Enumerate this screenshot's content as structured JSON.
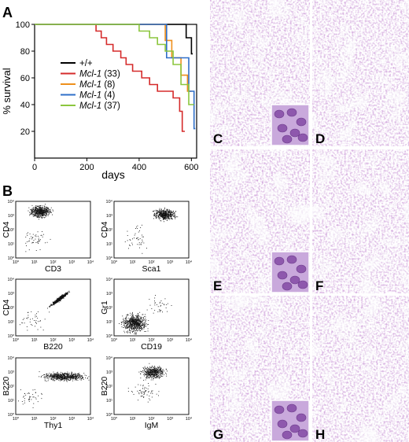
{
  "panels": {
    "A": "A",
    "B": "B",
    "C": "C",
    "D": "D",
    "E": "E",
    "F": "F",
    "G": "G",
    "H": "H"
  },
  "chart_data": [
    {
      "type": "line",
      "panel": "A",
      "xlabel": "days",
      "ylabel": "% survival",
      "xlim": [
        0,
        620
      ],
      "ylim": [
        0,
        100
      ],
      "xticks": [
        0,
        200,
        400,
        600
      ],
      "yticks": [
        20,
        40,
        60,
        80,
        100
      ],
      "legend_position": "center-left",
      "series": [
        {
          "name": "+/+",
          "name_italic": "",
          "name_suffix": "",
          "color": "#000000",
          "x": [
            0,
            580,
            580,
            600,
            600,
            605
          ],
          "y": [
            100,
            100,
            90,
            90,
            78,
            78
          ]
        },
        {
          "name": "Mcl-1 (33)",
          "name_italic": "Mcl-1",
          "name_suffix": " (33)",
          "color": "#d52b2b",
          "x": [
            0,
            235,
            235,
            255,
            255,
            275,
            275,
            300,
            300,
            330,
            330,
            350,
            350,
            375,
            375,
            410,
            410,
            440,
            440,
            470,
            470,
            530,
            530,
            555,
            555,
            565,
            565,
            575
          ],
          "y": [
            100,
            100,
            95,
            95,
            90,
            90,
            85,
            85,
            80,
            80,
            75,
            75,
            70,
            70,
            65,
            65,
            60,
            60,
            55,
            55,
            50,
            50,
            45,
            45,
            35,
            35,
            20,
            20
          ]
        },
        {
          "name": "Mcl-1 (8)",
          "name_italic": "Mcl-1",
          "name_suffix": " (8)",
          "color": "#ee8f1c",
          "x": [
            0,
            500,
            500,
            525,
            525,
            560,
            560,
            585,
            585,
            600
          ],
          "y": [
            100,
            100,
            88,
            88,
            75,
            75,
            62,
            62,
            50,
            50
          ]
        },
        {
          "name": "Mcl-1 (4)",
          "name_italic": "Mcl-1",
          "name_suffix": " (4)",
          "color": "#2f6fc9",
          "x": [
            0,
            505,
            505,
            590,
            590,
            610,
            610,
            615
          ],
          "y": [
            100,
            100,
            75,
            75,
            50,
            50,
            22,
            22
          ]
        },
        {
          "name": "Mcl-1 (37)",
          "name_italic": "Mcl-1",
          "name_suffix": " (37)",
          "color": "#8cc63e",
          "x": [
            0,
            400,
            400,
            440,
            440,
            470,
            470,
            500,
            500,
            530,
            530,
            560,
            560,
            590,
            590,
            610
          ],
          "y": [
            100,
            100,
            95,
            95,
            90,
            90,
            85,
            85,
            80,
            80,
            70,
            70,
            55,
            55,
            40,
            40
          ]
        }
      ]
    },
    {
      "type": "scatter",
      "panel": "B",
      "axis_scale": "log",
      "axis_range": [
        1,
        10000
      ],
      "tick_labels": [
        "10⁰",
        "10¹",
        "10²",
        "10³",
        "10⁴"
      ],
      "plots": [
        {
          "xlabel": "CD3",
          "ylabel": "CD4"
        },
        {
          "xlabel": "Sca1",
          "ylabel": "CD4"
        },
        {
          "xlabel": "B220",
          "ylabel": "CD4"
        },
        {
          "xlabel": "CD19",
          "ylabel": "Gr1"
        },
        {
          "xlabel": "Thy1",
          "ylabel": "B220"
        },
        {
          "xlabel": "IgM",
          "ylabel": "B220"
        }
      ]
    }
  ],
  "micrographs": [
    {
      "panel": "C",
      "inset": true
    },
    {
      "panel": "D",
      "inset": false
    },
    {
      "panel": "E",
      "inset": true
    },
    {
      "panel": "F",
      "inset": false
    },
    {
      "panel": "G",
      "inset": true
    },
    {
      "panel": "H",
      "inset": false
    }
  ]
}
